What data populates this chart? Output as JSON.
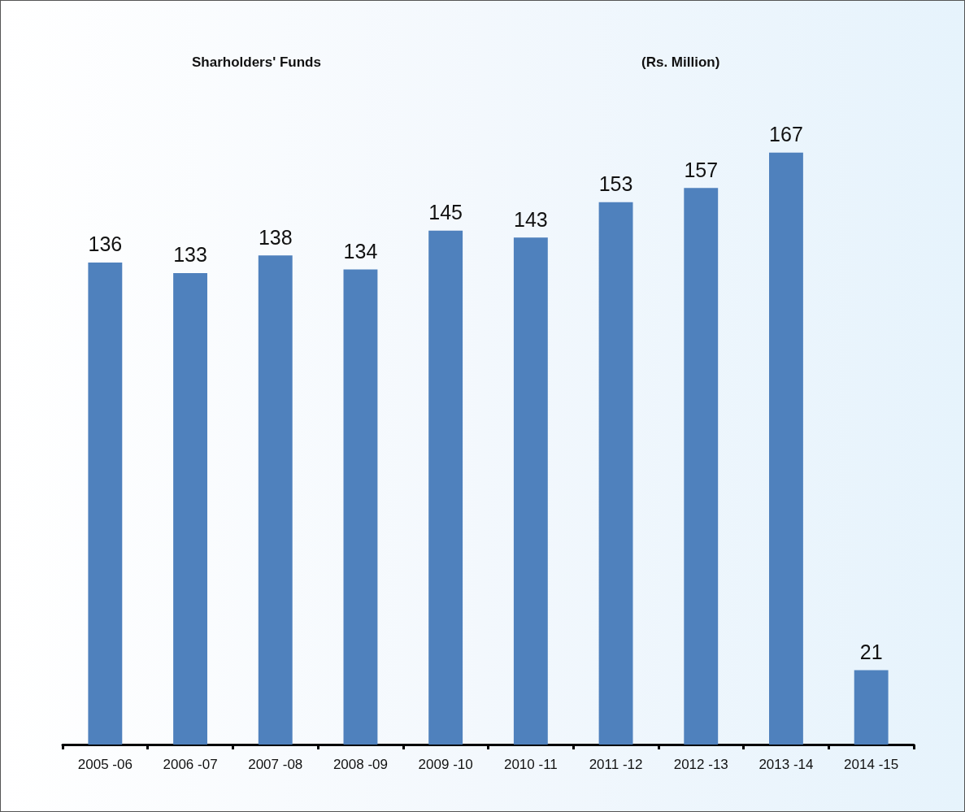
{
  "chart_data": {
    "type": "bar",
    "title": "Sharholders' Funds",
    "subtitle": "(Rs. Million)",
    "categories": [
      "2005 -06",
      "2006 -07",
      "2007 -08",
      "2008 -09",
      "2009 -10",
      "2010 -11",
      "2011 -12",
      "2012 -13",
      "2013 -14",
      "2014 -15"
    ],
    "values": [
      136,
      133,
      138,
      134,
      145,
      143,
      153,
      157,
      167,
      21
    ],
    "color": "#4f81bd",
    "data_labels": true
  }
}
